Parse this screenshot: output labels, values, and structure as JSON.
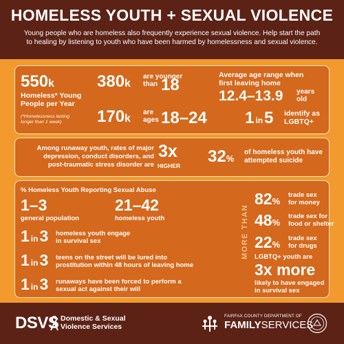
{
  "header": {
    "title": "HOMELESS YOUTH + SEXUAL VIOLENCE",
    "subtitle": "Young people who are homeless also frequently experience sexual violence. Help start the path to healing by listening to youth who have been harmed by homelessness and sexual violence."
  },
  "panel1": {
    "stat1_num": "550",
    "stat1_unit": "k",
    "stat1_label1": "Homeless* Young",
    "stat1_label2": "People per Year",
    "stat1_note1": "(*Homelessness lasting",
    "stat1_note2": "longer than 1 week)",
    "stat2_num": "380",
    "stat2_unit": "k",
    "stat2_pre1": "are younger",
    "stat2_pre2": "than",
    "stat2_val": "18",
    "stat3_num": "170",
    "stat3_unit": "k",
    "stat3_pre1": "are",
    "stat3_pre2": "ages",
    "stat3_val": "18–24",
    "stat4_label1": "Average age range when",
    "stat4_label2": "first leaving home",
    "stat4_a": "12",
    "stat4_b": ".4–13",
    "stat4_c": ".9",
    "stat4_suf1": "years",
    "stat4_suf2": "old",
    "stat5_a": "1",
    "stat5_in": "in",
    "stat5_b": "5",
    "stat5_label1": "identify as",
    "stat5_label2": "LGBTQ+"
  },
  "panel2": {
    "text1": "Among runaway youth, rates of major",
    "text2": "depression, conduct disorders, and",
    "text3": "post-traumatic stress disorder are",
    "num": "3x",
    "num_label": "HIGHER",
    "pct": "32",
    "pct_sign": "%",
    "pct_label1": "of homeless youth have",
    "pct_label2": "attempted suicide"
  },
  "panel3": {
    "heading": "% Homeless Youth Reporting Sexual Abuse",
    "r1_val": "1–3",
    "r1_label": "general population",
    "r2_val": "21–42",
    "r2_label": "homeless youth",
    "in_word": "in",
    "row_a_num1": "1",
    "row_a_num2": "3",
    "row_a_text1": "homeless youth engage",
    "row_a_text2": "in survival sex",
    "row_b_num1": "1",
    "row_b_num2": "3",
    "row_b_text1": "teens on the street will be lured into",
    "row_b_text2": "prostitution within 48 hours of leaving home",
    "row_c_num1": "1",
    "row_c_num2": "3",
    "row_c_text1": "runaways have been forced to perform a",
    "row_c_text2": "sexual act against their will",
    "more_than": "MORE THAN",
    "p1": "82",
    "p1_label1": "trade sex",
    "p1_label2": "for money",
    "p2": "48",
    "p2_label1": "trade sex for",
    "p2_label2": "food or shelter",
    "p3": "22",
    "p3_label1": "trade sex",
    "p3_label2": "for drugs",
    "pct_sign": "%",
    "lgbt_pre": "LGBTQ+ youth are",
    "lgbt_num": "3x more",
    "lgbt_post1": "likely to have engaged",
    "lgbt_post2": "in survival sex"
  },
  "footer": {
    "dsvs": "DSVS",
    "dsvs_line1": "Domestic & Sexual",
    "dsvs_line2": "Violence Services",
    "dept_small": "FAIRFAX COUNTY DEPARTMENT OF",
    "dept_family": "FAMILY",
    "dept_services": "SERVICES"
  },
  "colors": {
    "header_bg": "#5c2216",
    "page_bg": "#f29a2e",
    "panel_bg": "#d4681c",
    "panel_border": "#fce4c4"
  }
}
